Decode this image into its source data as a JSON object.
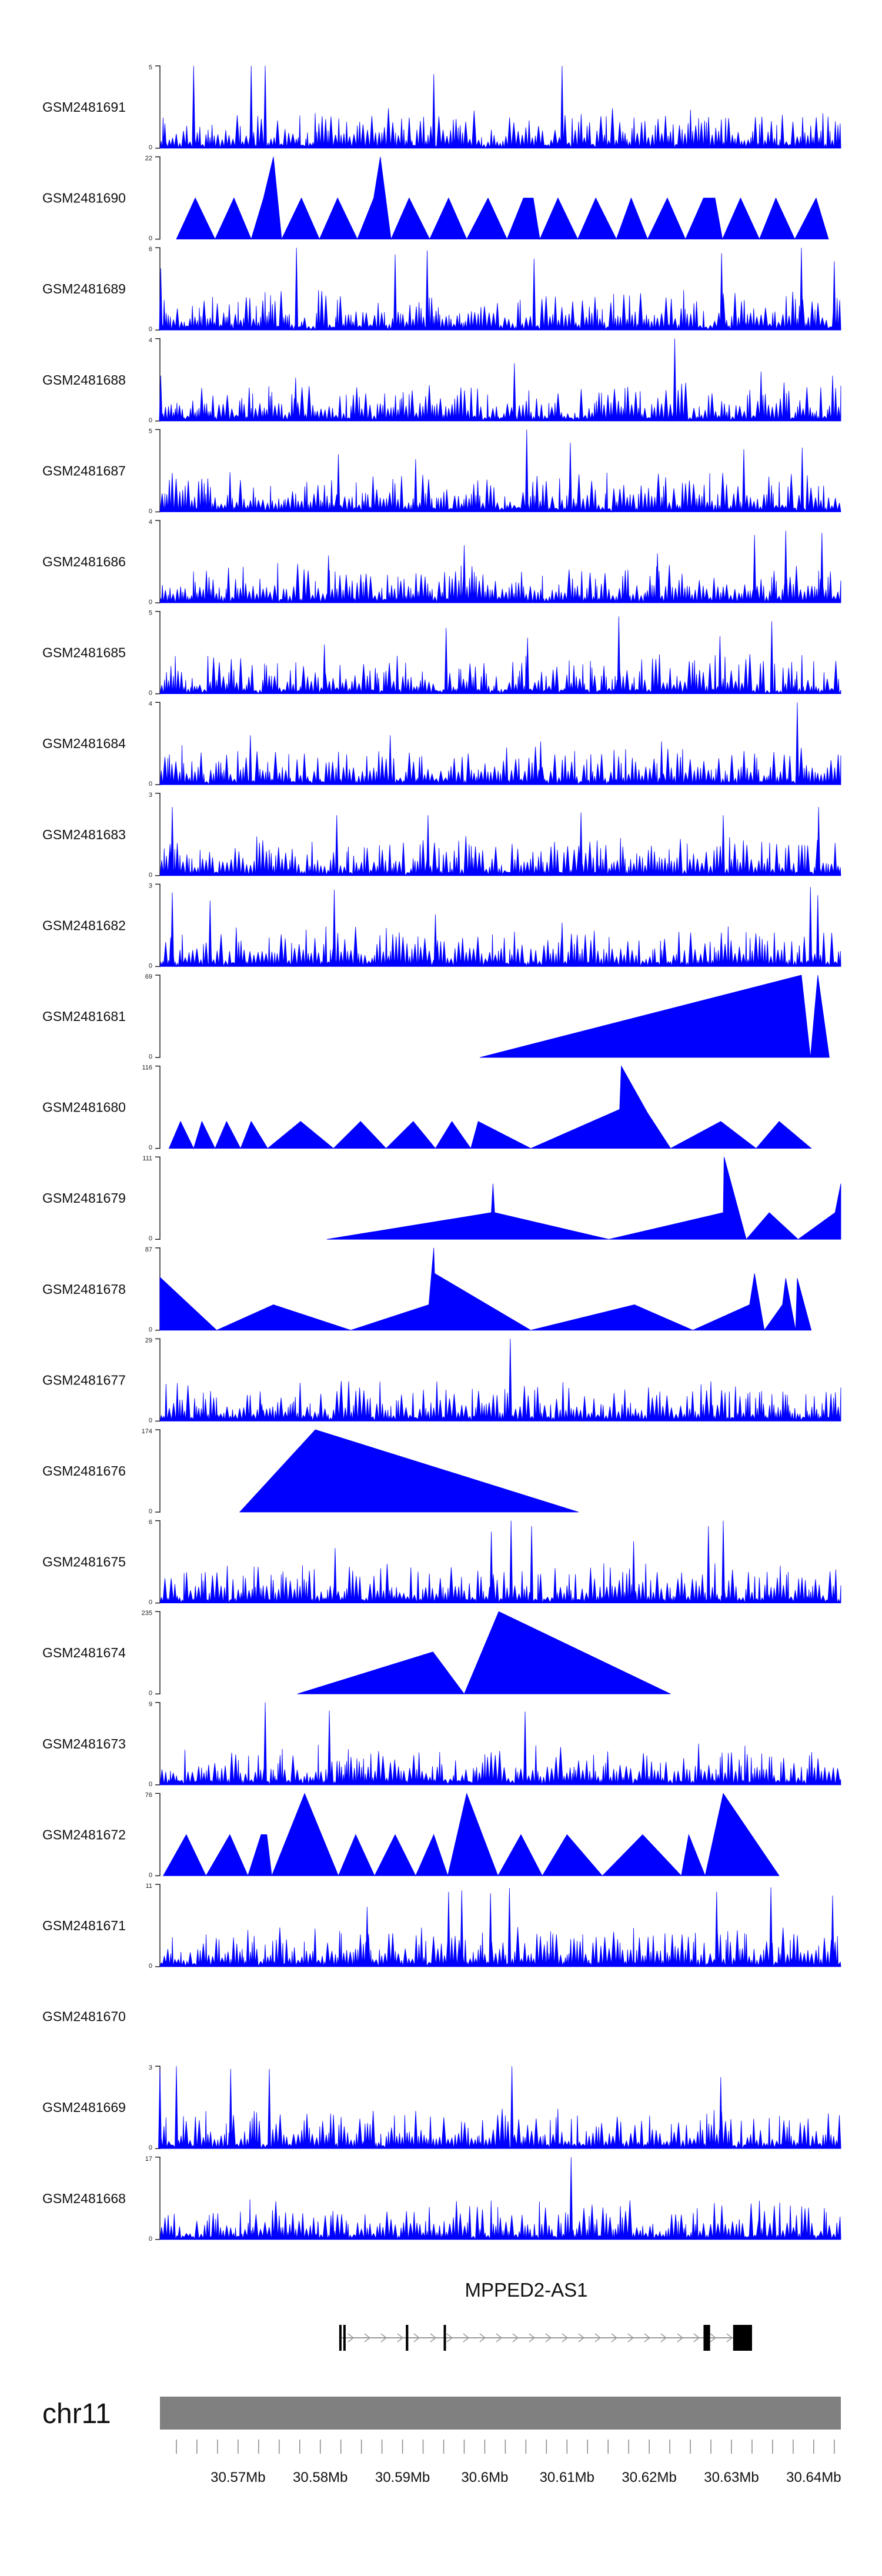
{
  "chart_data": {
    "type": "area",
    "title": "",
    "chromosome": "chr11",
    "xlabel": "",
    "ylabel": "",
    "x_range_mb": [
      30.5605,
      30.6433
    ],
    "x_ticks": [
      {
        "value": 30.57,
        "label": "30.57Mb"
      },
      {
        "value": 30.58,
        "label": "30.58Mb"
      },
      {
        "value": 30.59,
        "label": "30.59Mb"
      },
      {
        "value": 30.6,
        "label": "30.6Mb"
      },
      {
        "value": 30.61,
        "label": "30.61Mb"
      },
      {
        "value": 30.62,
        "label": "30.62Mb"
      },
      {
        "value": 30.63,
        "label": "30.63Mb"
      },
      {
        "value": 30.64,
        "label": "30.64Mb"
      }
    ],
    "minor_tick_step_mb": 0.0025,
    "series_color": "#0000ff",
    "tracks": [
      {
        "name": "GSM2481691",
        "ymax": 5,
        "ymin_label": "0",
        "ymax_label": "5",
        "profile": "dense",
        "seed": 11,
        "peaks": [
          [
            30.5611,
            1.5
          ],
          [
            30.5646,
            5.0
          ],
          [
            30.5716,
            5.0
          ],
          [
            30.5733,
            5.0
          ],
          [
            30.5938,
            4.5
          ],
          [
            30.6094,
            5.0
          ]
        ]
      },
      {
        "name": "GSM2481690",
        "ymax": 22,
        "ymin_label": "0",
        "ymax_label": "22",
        "profile": "triangles",
        "points": [
          [
            30.5625,
            0
          ],
          [
            30.5648,
            11
          ],
          [
            30.5672,
            0
          ],
          [
            30.5695,
            11
          ],
          [
            30.5716,
            0
          ],
          [
            30.5731,
            11
          ],
          [
            30.5743,
            22
          ],
          [
            30.5753,
            0
          ],
          [
            30.5777,
            11
          ],
          [
            30.5799,
            0
          ],
          [
            30.5821,
            11
          ],
          [
            30.5845,
            0
          ],
          [
            30.5865,
            11
          ],
          [
            30.5873,
            22
          ],
          [
            30.5886,
            0
          ],
          [
            30.5908,
            11
          ],
          [
            30.5933,
            0
          ],
          [
            30.5956,
            11
          ],
          [
            30.5978,
            0
          ],
          [
            30.6004,
            11
          ],
          [
            30.6027,
            0
          ],
          [
            30.6047,
            11
          ],
          [
            30.6059,
            11
          ],
          [
            30.6067,
            0
          ],
          [
            30.6089,
            11
          ],
          [
            30.6113,
            0
          ],
          [
            30.6135,
            11
          ],
          [
            30.616,
            0
          ],
          [
            30.6178,
            11
          ],
          [
            30.6198,
            0
          ],
          [
            30.6222,
            11
          ],
          [
            30.6244,
            0
          ],
          [
            30.6266,
            11
          ],
          [
            30.628,
            11
          ],
          [
            30.6289,
            0
          ],
          [
            30.6311,
            11
          ],
          [
            30.6334,
            0
          ],
          [
            30.6354,
            11
          ],
          [
            30.6377,
            0
          ],
          [
            30.6403,
            11
          ],
          [
            30.6418,
            0
          ]
        ]
      },
      {
        "name": "GSM2481689",
        "ymax": 6,
        "ymin_label": "0",
        "ymax_label": "6",
        "profile": "dense",
        "seed": 23,
        "peaks": [
          [
            30.5606,
            4.5
          ],
          [
            30.5771,
            6.0
          ],
          [
            30.5891,
            5.5
          ],
          [
            30.593,
            5.8
          ],
          [
            30.606,
            5.2
          ],
          [
            30.6288,
            5.6
          ],
          [
            30.6385,
            6.0
          ],
          [
            30.6425,
            5.0
          ]
        ]
      },
      {
        "name": "GSM2481688",
        "ymax": 4,
        "ymin_label": "0",
        "ymax_label": "4",
        "profile": "dense",
        "seed": 37,
        "peaks": [
          [
            30.5606,
            2.2
          ],
          [
            30.577,
            2.1
          ],
          [
            30.6036,
            2.8
          ],
          [
            30.6231,
            4.0
          ],
          [
            30.6336,
            2.4
          ],
          [
            30.6423,
            2.2
          ]
        ]
      },
      {
        "name": "GSM2481687",
        "ymax": 5,
        "ymin_label": "0",
        "ymax_label": "5",
        "profile": "dense",
        "seed": 41,
        "peaks": [
          [
            30.5822,
            3.5
          ],
          [
            30.5916,
            3.2
          ],
          [
            30.6051,
            5.0
          ],
          [
            30.6104,
            4.2
          ],
          [
            30.6315,
            3.8
          ],
          [
            30.6386,
            3.9
          ]
        ]
      },
      {
        "name": "GSM2481686",
        "ymax": 4,
        "ymin_label": "0",
        "ymax_label": "4",
        "profile": "dense",
        "seed": 53,
        "peaks": [
          [
            30.581,
            2.3
          ],
          [
            30.5975,
            2.8
          ],
          [
            30.621,
            2.4
          ],
          [
            30.6328,
            3.3
          ],
          [
            30.6366,
            3.5
          ],
          [
            30.641,
            3.4
          ]
        ]
      },
      {
        "name": "GSM2481685",
        "ymax": 5,
        "ymin_label": "0",
        "ymax_label": "5",
        "profile": "dense",
        "seed": 67,
        "peaks": [
          [
            30.5805,
            3.0
          ],
          [
            30.5953,
            4.0
          ],
          [
            30.6052,
            3.4
          ],
          [
            30.6163,
            4.7
          ],
          [
            30.6286,
            3.5
          ],
          [
            30.6349,
            4.4
          ]
        ]
      },
      {
        "name": "GSM2481684",
        "ymax": 4,
        "ymin_label": "0",
        "ymax_label": "4",
        "profile": "dense",
        "seed": 71,
        "peaks": [
          [
            30.5715,
            2.4
          ],
          [
            30.5885,
            2.4
          ],
          [
            30.6068,
            2.1
          ],
          [
            30.6215,
            2.1
          ],
          [
            30.638,
            4.0
          ]
        ]
      },
      {
        "name": "GSM2481683",
        "ymax": 3,
        "ymin_label": "0",
        "ymax_label": "3",
        "profile": "dense",
        "seed": 83,
        "peaks": [
          [
            30.562,
            2.5
          ],
          [
            30.582,
            2.2
          ],
          [
            30.5931,
            2.2
          ],
          [
            30.6117,
            2.3
          ],
          [
            30.629,
            2.2
          ],
          [
            30.6406,
            2.5
          ]
        ]
      },
      {
        "name": "GSM2481682",
        "ymax": 3,
        "ymin_label": "0",
        "ymax_label": "3",
        "profile": "dense",
        "seed": 97,
        "peaks": [
          [
            30.562,
            2.7
          ],
          [
            30.5666,
            2.4
          ],
          [
            30.5817,
            2.8
          ],
          [
            30.594,
            1.9
          ],
          [
            30.6094,
            1.6
          ],
          [
            30.6396,
            2.9
          ],
          [
            30.6405,
            2.6
          ]
        ]
      },
      {
        "name": "GSM2481681",
        "ymax": 69,
        "ymin_label": "0",
        "ymax_label": "69",
        "profile": "triangles",
        "points": [
          [
            30.5994,
            0
          ],
          [
            30.6385,
            69
          ],
          [
            30.6396,
            0
          ],
          [
            30.6405,
            69
          ],
          [
            30.6419,
            0
          ]
        ]
      },
      {
        "name": "GSM2481680",
        "ymax": 116,
        "ymin_label": "0",
        "ymax_label": "116",
        "profile": "triangles",
        "points": [
          [
            30.5616,
            0
          ],
          [
            30.563,
            38
          ],
          [
            30.5646,
            0
          ],
          [
            30.5656,
            38
          ],
          [
            30.5672,
            0
          ],
          [
            30.5686,
            38
          ],
          [
            30.5703,
            0
          ],
          [
            30.5716,
            38
          ],
          [
            30.5736,
            0
          ],
          [
            30.5776,
            38
          ],
          [
            30.5816,
            0
          ],
          [
            30.5849,
            38
          ],
          [
            30.588,
            0
          ],
          [
            30.5913,
            38
          ],
          [
            30.594,
            0
          ],
          [
            30.596,
            38
          ],
          [
            30.5983,
            0
          ],
          [
            30.5992,
            38
          ],
          [
            30.6056,
            0
          ],
          [
            30.6164,
            55
          ],
          [
            30.6166,
            116
          ],
          [
            30.6198,
            50
          ],
          [
            30.6226,
            0
          ],
          [
            30.6287,
            38
          ],
          [
            30.633,
            0
          ],
          [
            30.6358,
            38
          ],
          [
            30.6397,
            0
          ]
        ]
      },
      {
        "name": "GSM2481679",
        "ymax": 111,
        "ymin_label": "0",
        "ymax_label": "111",
        "profile": "triangles",
        "points": [
          [
            30.5808,
            0
          ],
          [
            30.6008,
            36
          ],
          [
            30.601,
            75
          ],
          [
            30.6012,
            36
          ],
          [
            30.6151,
            0
          ],
          [
            30.629,
            36
          ],
          [
            30.6291,
            111
          ],
          [
            30.6318,
            0
          ],
          [
            30.6346,
            36
          ],
          [
            30.6381,
            0
          ],
          [
            30.6426,
            36
          ],
          [
            30.6433,
            75
          ]
        ]
      },
      {
        "name": "GSM2481678",
        "ymax": 87,
        "ymin_label": "0",
        "ymax_label": "87",
        "profile": "triangles",
        "points": [
          [
            30.5605,
            56
          ],
          [
            30.5674,
            0
          ],
          [
            30.5743,
            27
          ],
          [
            30.5837,
            0
          ],
          [
            30.5932,
            27
          ],
          [
            30.5938,
            87
          ],
          [
            30.5939,
            60
          ],
          [
            30.6056,
            0
          ],
          [
            30.6182,
            27
          ],
          [
            30.6253,
            0
          ],
          [
            30.6322,
            27
          ],
          [
            30.6328,
            60
          ],
          [
            30.634,
            0
          ],
          [
            30.6362,
            27
          ],
          [
            30.6366,
            55
          ],
          [
            30.6378,
            0
          ],
          [
            30.638,
            55
          ],
          [
            30.6397,
            0
          ]
        ]
      },
      {
        "name": "GSM2481677",
        "ymax": 29,
        "ymin_label": "0",
        "ymax_label": "29",
        "profile": "dense",
        "seed": 109,
        "peaks": [
          [
            30.5729,
            6.0
          ],
          [
            30.5999,
            4.5
          ],
          [
            30.6031,
            29.0
          ],
          [
            30.6275,
            14.0
          ]
        ]
      },
      {
        "name": "GSM2481676",
        "ymax": 174,
        "ymin_label": "0",
        "ymax_label": "174",
        "profile": "triangles",
        "points": [
          [
            30.5702,
            0
          ],
          [
            30.5794,
            174
          ],
          [
            30.6114,
            0
          ]
        ]
      },
      {
        "name": "GSM2481675",
        "ymax": 6,
        "ymin_label": "0",
        "ymax_label": "6",
        "profile": "dense",
        "seed": 131,
        "peaks": [
          [
            30.5818,
            4.0
          ],
          [
            30.6008,
            5.2
          ],
          [
            30.6032,
            6.0
          ],
          [
            30.6057,
            5.6
          ],
          [
            30.6181,
            4.5
          ],
          [
            30.6272,
            5.6
          ],
          [
            30.629,
            6.0
          ]
        ]
      },
      {
        "name": "GSM2481674",
        "ymax": 235,
        "ymin_label": "0",
        "ymax_label": "235",
        "profile": "triangles",
        "points": [
          [
            30.5772,
            0
          ],
          [
            30.5937,
            120
          ],
          [
            30.5975,
            0
          ],
          [
            30.6017,
            235
          ],
          [
            30.6226,
            0
          ]
        ]
      },
      {
        "name": "GSM2481673",
        "ymax": 9,
        "ymin_label": "0",
        "ymax_label": "9",
        "profile": "dense",
        "seed": 149,
        "peaks": [
          [
            30.5733,
            9.0
          ],
          [
            30.5811,
            8.1
          ],
          [
            30.6049,
            8.0
          ],
          [
            30.626,
            4.5
          ]
        ]
      },
      {
        "name": "GSM2481672",
        "ymax": 76,
        "ymin_label": "0",
        "ymax_label": "76",
        "profile": "triangles",
        "points": [
          [
            30.5609,
            0
          ],
          [
            30.5637,
            38
          ],
          [
            30.5661,
            0
          ],
          [
            30.569,
            38
          ],
          [
            30.5712,
            0
          ],
          [
            30.5728,
            38
          ],
          [
            30.5735,
            38
          ],
          [
            30.5741,
            0
          ],
          [
            30.5781,
            76
          ],
          [
            30.5822,
            0
          ],
          [
            30.5843,
            38
          ],
          [
            30.5866,
            0
          ],
          [
            30.5891,
            38
          ],
          [
            30.5916,
            0
          ],
          [
            30.5938,
            38
          ],
          [
            30.5955,
            0
          ],
          [
            30.5978,
            76
          ],
          [
            30.6016,
            0
          ],
          [
            30.6044,
            38
          ],
          [
            30.607,
            0
          ],
          [
            30.61,
            38
          ],
          [
            30.6143,
            0
          ],
          [
            30.6192,
            38
          ],
          [
            30.6239,
            0
          ],
          [
            30.6248,
            38
          ],
          [
            30.6268,
            0
          ],
          [
            30.629,
            76
          ],
          [
            30.6358,
            0
          ]
        ]
      },
      {
        "name": "GSM2481671",
        "ymax": 11,
        "ymin_label": "0",
        "ymax_label": "11",
        "profile": "dense",
        "seed": 163,
        "peaks": [
          [
            30.5857,
            8.0
          ],
          [
            30.5956,
            10.0
          ],
          [
            30.5972,
            10.2
          ],
          [
            30.6007,
            9.8
          ],
          [
            30.603,
            10.5
          ],
          [
            30.6282,
            10.0
          ],
          [
            30.6348,
            10.6
          ],
          [
            30.6423,
            9.5
          ]
        ]
      },
      {
        "name": "GSM2481670",
        "ymax": 0,
        "ymin_label": "",
        "ymax_label": "",
        "profile": "empty"
      },
      {
        "name": "GSM2481669",
        "ymax": 3,
        "ymin_label": "0",
        "ymax_label": "3",
        "profile": "dense",
        "seed": 179,
        "peaks": [
          [
            30.5605,
            2.9
          ],
          [
            30.5625,
            3.0
          ],
          [
            30.5691,
            2.9
          ],
          [
            30.5738,
            2.9
          ],
          [
            30.6033,
            3.0
          ],
          [
            30.6287,
            2.6
          ]
        ]
      },
      {
        "name": "GSM2481668",
        "ymax": 17,
        "ymin_label": "0",
        "ymax_label": "17",
        "profile": "dense",
        "seed": 191,
        "peaks": [
          [
            30.5813,
            5.0
          ],
          [
            30.6105,
            17.0
          ],
          [
            30.6334,
            8.0
          ],
          [
            30.6379,
            5.0
          ]
        ]
      }
    ],
    "gene_track": {
      "gene_name": "MPPED2-AS1",
      "strand": "+",
      "start_mb": 30.5823,
      "end_mb": 30.6325,
      "exons_mb": [
        [
          30.5823,
          30.5825
        ],
        [
          30.5828,
          30.583
        ],
        [
          30.5904,
          30.5907
        ],
        [
          30.595,
          30.5952
        ],
        [
          30.6266,
          30.6274
        ],
        [
          30.6302,
          30.6325
        ]
      ]
    }
  }
}
